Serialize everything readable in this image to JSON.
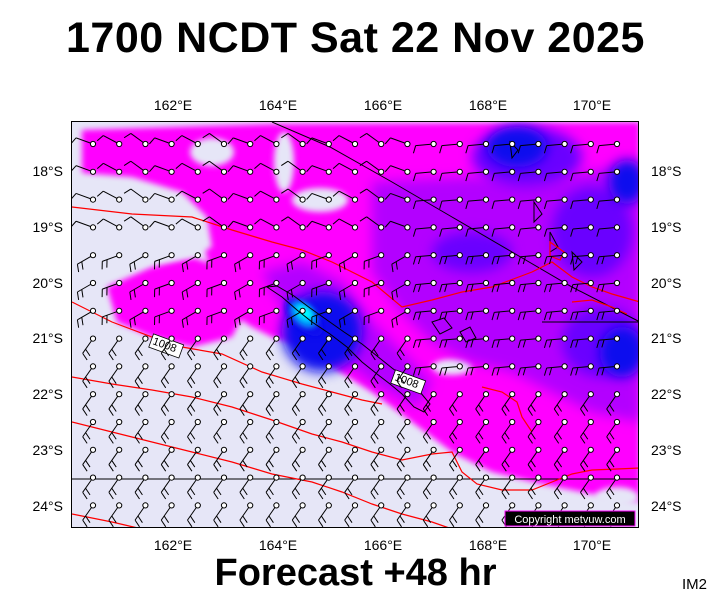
{
  "title": "1700 NCDT Sat 22 Nov 2025",
  "footer": "Forecast +48 hr",
  "product_code": "IM2",
  "copyright": "Copyright metvuw.com",
  "longitudes": [
    "162°E",
    "164°E",
    "166°E",
    "168°E",
    "170°E"
  ],
  "latitudes": [
    "18°S",
    "19°S",
    "20°S",
    "21°S",
    "22°S",
    "23°S",
    "24°S"
  ],
  "isobar_labels": [
    "1008",
    "1008"
  ],
  "colors": {
    "calm_background": "#e6e6f7",
    "magenta": "#ff00ff",
    "purple": "#b300ff",
    "violet": "#6a00ff",
    "blue": "#1010ee",
    "cyan": "#00ffff",
    "isobar": "#ff0000",
    "boundary": "#000000"
  }
}
